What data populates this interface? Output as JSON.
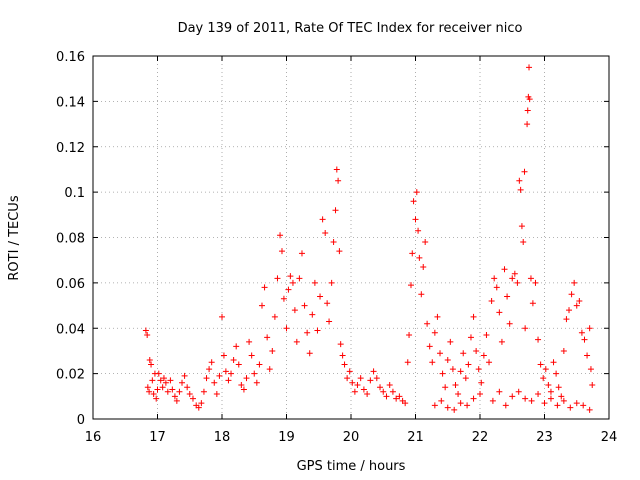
{
  "chart_data": {
    "type": "scatter",
    "title": "Day 139 of 2011, Rate Of TEC Index for receiver nico",
    "xlabel": "GPS time / hours",
    "ylabel": "ROTI / TECUs",
    "xlim": [
      16,
      24
    ],
    "ylim": [
      0,
      0.16
    ],
    "x_ticks": [
      "16",
      "17",
      "18",
      "19",
      "20",
      "21",
      "22",
      "23",
      "24"
    ],
    "y_ticks": [
      "0",
      "0.02",
      "0.04",
      "0.06",
      "0.08",
      "0.1",
      "0.12",
      "0.14",
      "0.16"
    ],
    "grid": true,
    "marker": "+",
    "color": "#ff0000",
    "points": [
      [
        16.82,
        0.039
      ],
      [
        16.84,
        0.037
      ],
      [
        16.85,
        0.014
      ],
      [
        16.87,
        0.012
      ],
      [
        16.88,
        0.026
      ],
      [
        16.9,
        0.024
      ],
      [
        16.92,
        0.017
      ],
      [
        16.94,
        0.011
      ],
      [
        16.96,
        0.02
      ],
      [
        16.98,
        0.009
      ],
      [
        17.0,
        0.013
      ],
      [
        17.02,
        0.02
      ],
      [
        17.05,
        0.017
      ],
      [
        17.08,
        0.014
      ],
      [
        17.1,
        0.018
      ],
      [
        17.13,
        0.016
      ],
      [
        17.16,
        0.012
      ],
      [
        17.2,
        0.017
      ],
      [
        17.23,
        0.013
      ],
      [
        17.27,
        0.01
      ],
      [
        17.3,
        0.008
      ],
      [
        17.34,
        0.012
      ],
      [
        17.38,
        0.016
      ],
      [
        17.42,
        0.019
      ],
      [
        17.46,
        0.014
      ],
      [
        17.5,
        0.011
      ],
      [
        17.55,
        0.009
      ],
      [
        17.6,
        0.006
      ],
      [
        17.64,
        0.005
      ],
      [
        17.68,
        0.007
      ],
      [
        17.72,
        0.012
      ],
      [
        17.76,
        0.018
      ],
      [
        17.8,
        0.022
      ],
      [
        17.84,
        0.025
      ],
      [
        17.88,
        0.016
      ],
      [
        17.92,
        0.011
      ],
      [
        17.96,
        0.019
      ],
      [
        18.0,
        0.045
      ],
      [
        18.03,
        0.028
      ],
      [
        18.06,
        0.021
      ],
      [
        18.1,
        0.017
      ],
      [
        18.14,
        0.02
      ],
      [
        18.18,
        0.026
      ],
      [
        18.22,
        0.032
      ],
      [
        18.26,
        0.024
      ],
      [
        18.3,
        0.015
      ],
      [
        18.34,
        0.013
      ],
      [
        18.38,
        0.018
      ],
      [
        18.42,
        0.034
      ],
      [
        18.46,
        0.028
      ],
      [
        18.5,
        0.02
      ],
      [
        18.54,
        0.016
      ],
      [
        18.58,
        0.024
      ],
      [
        18.62,
        0.05
      ],
      [
        18.66,
        0.058
      ],
      [
        18.7,
        0.036
      ],
      [
        18.74,
        0.022
      ],
      [
        18.78,
        0.03
      ],
      [
        18.82,
        0.045
      ],
      [
        18.86,
        0.062
      ],
      [
        18.9,
        0.081
      ],
      [
        18.93,
        0.074
      ],
      [
        18.96,
        0.053
      ],
      [
        19.0,
        0.04
      ],
      [
        19.03,
        0.057
      ],
      [
        19.06,
        0.063
      ],
      [
        19.1,
        0.06
      ],
      [
        19.13,
        0.048
      ],
      [
        19.16,
        0.034
      ],
      [
        19.2,
        0.062
      ],
      [
        19.24,
        0.073
      ],
      [
        19.28,
        0.05
      ],
      [
        19.32,
        0.038
      ],
      [
        19.36,
        0.029
      ],
      [
        19.4,
        0.046
      ],
      [
        19.44,
        0.06
      ],
      [
        19.48,
        0.039
      ],
      [
        19.52,
        0.054
      ],
      [
        19.56,
        0.088
      ],
      [
        19.6,
        0.082
      ],
      [
        19.63,
        0.051
      ],
      [
        19.66,
        0.043
      ],
      [
        19.7,
        0.06
      ],
      [
        19.73,
        0.078
      ],
      [
        19.76,
        0.092
      ],
      [
        19.78,
        0.11
      ],
      [
        19.8,
        0.105
      ],
      [
        19.82,
        0.074
      ],
      [
        19.84,
        0.033
      ],
      [
        19.87,
        0.028
      ],
      [
        19.9,
        0.024
      ],
      [
        19.94,
        0.018
      ],
      [
        19.98,
        0.021
      ],
      [
        20.02,
        0.016
      ],
      [
        20.06,
        0.012
      ],
      [
        20.1,
        0.015
      ],
      [
        20.15,
        0.018
      ],
      [
        20.2,
        0.013
      ],
      [
        20.25,
        0.011
      ],
      [
        20.3,
        0.017
      ],
      [
        20.35,
        0.021
      ],
      [
        20.4,
        0.018
      ],
      [
        20.45,
        0.014
      ],
      [
        20.5,
        0.012
      ],
      [
        20.55,
        0.01
      ],
      [
        20.6,
        0.015
      ],
      [
        20.65,
        0.012
      ],
      [
        20.7,
        0.009
      ],
      [
        20.75,
        0.01
      ],
      [
        20.8,
        0.008
      ],
      [
        20.84,
        0.007
      ],
      [
        20.88,
        0.025
      ],
      [
        20.9,
        0.037
      ],
      [
        20.93,
        0.059
      ],
      [
        20.95,
        0.073
      ],
      [
        20.97,
        0.096
      ],
      [
        21.0,
        0.088
      ],
      [
        21.02,
        0.1
      ],
      [
        21.04,
        0.083
      ],
      [
        21.06,
        0.071
      ],
      [
        21.09,
        0.055
      ],
      [
        21.12,
        0.067
      ],
      [
        21.15,
        0.078
      ],
      [
        21.18,
        0.042
      ],
      [
        21.22,
        0.032
      ],
      [
        21.26,
        0.025
      ],
      [
        21.3,
        0.038
      ],
      [
        21.34,
        0.045
      ],
      [
        21.38,
        0.029
      ],
      [
        21.42,
        0.02
      ],
      [
        21.46,
        0.014
      ],
      [
        21.5,
        0.026
      ],
      [
        21.54,
        0.034
      ],
      [
        21.58,
        0.022
      ],
      [
        21.62,
        0.015
      ],
      [
        21.66,
        0.011
      ],
      [
        21.7,
        0.021
      ],
      [
        21.74,
        0.029
      ],
      [
        21.78,
        0.018
      ],
      [
        21.82,
        0.024
      ],
      [
        21.86,
        0.036
      ],
      [
        21.9,
        0.045
      ],
      [
        21.94,
        0.03
      ],
      [
        21.98,
        0.022
      ],
      [
        22.02,
        0.016
      ],
      [
        22.06,
        0.028
      ],
      [
        22.1,
        0.037
      ],
      [
        22.14,
        0.025
      ],
      [
        22.18,
        0.052
      ],
      [
        22.22,
        0.062
      ],
      [
        22.26,
        0.058
      ],
      [
        22.3,
        0.047
      ],
      [
        22.34,
        0.034
      ],
      [
        22.38,
        0.066
      ],
      [
        22.42,
        0.054
      ],
      [
        22.46,
        0.042
      ],
      [
        22.5,
        0.062
      ],
      [
        22.54,
        0.064
      ],
      [
        22.58,
        0.06
      ],
      [
        22.61,
        0.105
      ],
      [
        22.63,
        0.101
      ],
      [
        22.65,
        0.085
      ],
      [
        22.67,
        0.078
      ],
      [
        22.69,
        0.109
      ],
      [
        22.7,
        0.04
      ],
      [
        22.73,
        0.13
      ],
      [
        22.74,
        0.136
      ],
      [
        22.75,
        0.142
      ],
      [
        22.76,
        0.155
      ],
      [
        22.77,
        0.141
      ],
      [
        22.79,
        0.062
      ],
      [
        22.82,
        0.051
      ],
      [
        22.86,
        0.06
      ],
      [
        22.9,
        0.035
      ],
      [
        22.94,
        0.024
      ],
      [
        22.98,
        0.018
      ],
      [
        23.02,
        0.022
      ],
      [
        23.06,
        0.015
      ],
      [
        23.1,
        0.012
      ],
      [
        23.14,
        0.025
      ],
      [
        23.18,
        0.02
      ],
      [
        23.22,
        0.014
      ],
      [
        23.26,
        0.01
      ],
      [
        23.3,
        0.03
      ],
      [
        23.34,
        0.044
      ],
      [
        23.38,
        0.048
      ],
      [
        23.42,
        0.055
      ],
      [
        23.46,
        0.06
      ],
      [
        23.5,
        0.05
      ],
      [
        23.54,
        0.052
      ],
      [
        23.58,
        0.038
      ],
      [
        23.62,
        0.035
      ],
      [
        23.66,
        0.028
      ],
      [
        23.7,
        0.04
      ],
      [
        23.72,
        0.022
      ],
      [
        23.74,
        0.015
      ],
      [
        22.2,
        0.008
      ],
      [
        22.3,
        0.012
      ],
      [
        22.4,
        0.006
      ],
      [
        22.5,
        0.01
      ],
      [
        22.6,
        0.012
      ],
      [
        22.7,
        0.009
      ],
      [
        22.8,
        0.008
      ],
      [
        22.9,
        0.011
      ],
      [
        23.0,
        0.007
      ],
      [
        23.1,
        0.009
      ],
      [
        23.2,
        0.006
      ],
      [
        23.3,
        0.008
      ],
      [
        23.4,
        0.005
      ],
      [
        23.5,
        0.007
      ],
      [
        23.6,
        0.006
      ],
      [
        23.7,
        0.004
      ],
      [
        21.3,
        0.006
      ],
      [
        21.4,
        0.008
      ],
      [
        21.5,
        0.005
      ],
      [
        21.6,
        0.004
      ],
      [
        21.7,
        0.007
      ],
      [
        21.8,
        0.006
      ],
      [
        21.9,
        0.009
      ],
      [
        22.0,
        0.011
      ]
    ]
  }
}
